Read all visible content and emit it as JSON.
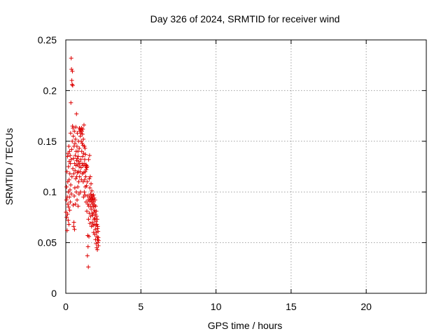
{
  "chart_data": {
    "type": "scatter",
    "title": "Day 326 of 2024, SRMTID for receiver wind",
    "xlabel": "GPS time / hours",
    "ylabel": "SRMTID / TECUs",
    "xlim": [
      0,
      24
    ],
    "ylim": [
      0,
      0.25
    ],
    "x_ticks": [
      0,
      5,
      10,
      15,
      20
    ],
    "x_tick_labels": [
      "0",
      "5",
      "10",
      "15",
      "20"
    ],
    "y_ticks": [
      0,
      0.05,
      0.1,
      0.15,
      0.2,
      0.25
    ],
    "y_tick_labels": [
      "0",
      "0.05",
      "0.1",
      "0.15",
      "0.2",
      "0.25"
    ],
    "grid": true,
    "marker": "plus",
    "marker_color": "#dd0000",
    "series": [
      {
        "points": [
          [
            0.02,
            0.08
          ],
          [
            0.04,
            0.092
          ],
          [
            0.05,
            0.105
          ],
          [
            0.06,
            0.075
          ],
          [
            0.08,
            0.12
          ],
          [
            0.09,
            0.062
          ],
          [
            0.1,
            0.095
          ],
          [
            0.11,
            0.135
          ],
          [
            0.12,
            0.078
          ],
          [
            0.13,
            0.11
          ],
          [
            0.14,
            0.088
          ],
          [
            0.15,
            0.138
          ],
          [
            0.16,
            0.072
          ],
          [
            0.17,
            0.1
          ],
          [
            0.18,
            0.125
          ],
          [
            0.19,
            0.085
          ],
          [
            0.2,
            0.145
          ],
          [
            0.21,
            0.068
          ],
          [
            0.22,
            0.112
          ],
          [
            0.23,
            0.13
          ],
          [
            0.24,
            0.095
          ],
          [
            0.25,
            0.14
          ],
          [
            0.26,
            0.082
          ],
          [
            0.27,
            0.118
          ],
          [
            0.28,
            0.102
          ],
          [
            0.29,
            0.136
          ],
          [
            0.3,
            0.09
          ],
          [
            0.31,
            0.128
          ],
          [
            0.32,
            0.158
          ],
          [
            0.33,
            0.107
          ],
          [
            0.34,
            0.188
          ],
          [
            0.35,
            0.132
          ],
          [
            0.36,
            0.232
          ],
          [
            0.37,
            0.098
          ],
          [
            0.38,
            0.221
          ],
          [
            0.39,
            0.142
          ],
          [
            0.4,
            0.21
          ],
          [
            0.41,
            0.115
          ],
          [
            0.42,
            0.206
          ],
          [
            0.43,
            0.15
          ],
          [
            0.44,
            0.219
          ],
          [
            0.45,
            0.165
          ],
          [
            0.46,
            0.205
          ],
          [
            0.47,
            0.123
          ],
          [
            0.48,
            0.163
          ],
          [
            0.49,
            0.087
          ],
          [
            0.5,
            0.155
          ],
          [
            0.51,
            0.133
          ],
          [
            0.52,
            0.066
          ],
          [
            0.53,
            0.118
          ],
          [
            0.54,
            0.07
          ],
          [
            0.55,
            0.145
          ],
          [
            0.56,
            0.096
          ],
          [
            0.57,
            0.16
          ],
          [
            0.58,
            0.063
          ],
          [
            0.59,
            0.128
          ],
          [
            0.6,
            0.104
          ],
          [
            0.61,
            0.148
          ],
          [
            0.62,
            0.121
          ],
          [
            0.63,
            0.136
          ],
          [
            0.64,
            0.088
          ],
          [
            0.65,
            0.152
          ],
          [
            0.66,
            0.113
          ],
          [
            0.67,
            0.164
          ],
          [
            0.68,
            0.126
          ],
          [
            0.69,
            0.14
          ],
          [
            0.7,
            0.1
          ],
          [
            0.71,
            0.177
          ],
          [
            0.72,
            0.131
          ],
          [
            0.73,
            0.115
          ],
          [
            0.74,
            0.145
          ],
          [
            0.75,
            0.092
          ],
          [
            0.76,
            0.133
          ],
          [
            0.77,
            0.158
          ],
          [
            0.78,
            0.119
          ],
          [
            0.79,
            0.127
          ],
          [
            0.8,
            0.105
          ],
          [
            0.81,
            0.14
          ],
          [
            0.82,
            0.086
          ],
          [
            0.83,
            0.135
          ],
          [
            0.84,
            0.12
          ],
          [
            0.85,
            0.15
          ],
          [
            0.86,
            0.11
          ],
          [
            0.87,
            0.13
          ],
          [
            0.88,
            0.098
          ],
          [
            0.89,
            0.125
          ],
          [
            0.9,
            0.143
          ],
          [
            0.91,
            0.163
          ],
          [
            0.92,
            0.115
          ],
          [
            0.93,
            0.16
          ],
          [
            0.94,
            0.128
          ],
          [
            0.95,
            0.162
          ],
          [
            0.96,
            0.12
          ],
          [
            0.97,
            0.155
          ],
          [
            0.98,
            0.1
          ],
          [
            0.99,
            0.161
          ],
          [
            1.0,
            0.132
          ],
          [
            1.01,
            0.158
          ],
          [
            1.02,
            0.124
          ],
          [
            1.03,
            0.15
          ],
          [
            1.04,
            0.112
          ],
          [
            1.05,
            0.163
          ],
          [
            1.06,
            0.14
          ],
          [
            1.07,
            0.16
          ],
          [
            1.08,
            0.128
          ],
          [
            1.09,
            0.148
          ],
          [
            1.1,
            0.118
          ],
          [
            1.11,
            0.157
          ],
          [
            1.12,
            0.135
          ],
          [
            1.13,
            0.162
          ],
          [
            1.14,
            0.126
          ],
          [
            1.15,
            0.146
          ],
          [
            1.16,
            0.11
          ],
          [
            1.17,
            0.152
          ],
          [
            1.18,
            0.095
          ],
          [
            1.19,
            0.138
          ],
          [
            1.2,
            0.119
          ],
          [
            1.21,
            0.166
          ],
          [
            1.22,
            0.128
          ],
          [
            1.23,
            0.1
          ],
          [
            1.24,
            0.145
          ],
          [
            1.25,
            0.112
          ],
          [
            1.26,
            0.132
          ],
          [
            1.27,
            0.097
          ],
          [
            1.28,
            0.143
          ],
          [
            1.29,
            0.12
          ],
          [
            1.3,
            0.105
          ],
          [
            1.31,
            0.137
          ],
          [
            1.32,
            0.125
          ],
          [
            1.33,
            0.115
          ],
          [
            1.34,
            0.127
          ],
          [
            1.35,
            0.09
          ],
          [
            1.36,
            0.122
          ],
          [
            1.37,
            0.126
          ],
          [
            1.38,
            0.106
          ],
          [
            1.39,
            0.124
          ],
          [
            1.4,
            0.081
          ],
          [
            1.42,
            0.125
          ],
          [
            1.43,
            0.11
          ],
          [
            1.44,
            0.037
          ],
          [
            1.45,
            0.096
          ],
          [
            1.46,
            0.057
          ],
          [
            1.47,
            0.088
          ],
          [
            1.48,
            0.046
          ],
          [
            1.49,
            0.092
          ],
          [
            1.5,
            0.026
          ],
          [
            1.51,
            0.073
          ],
          [
            1.52,
            0.132
          ],
          [
            1.53,
            0.086
          ],
          [
            1.54,
            0.056
          ],
          [
            1.55,
            0.096
          ],
          [
            1.56,
            0.113
          ],
          [
            1.57,
            0.079
          ],
          [
            1.58,
            0.136
          ],
          [
            1.59,
            0.091
          ],
          [
            1.6,
            0.104
          ],
          [
            1.61,
            0.069
          ],
          [
            1.62,
            0.094
          ],
          [
            1.63,
            0.115
          ],
          [
            1.64,
            0.086
          ],
          [
            1.65,
            0.098
          ],
          [
            1.66,
            0.076
          ],
          [
            1.67,
            0.093
          ],
          [
            1.68,
            0.108
          ],
          [
            1.69,
            0.083
          ],
          [
            1.7,
            0.096
          ],
          [
            1.71,
            0.066
          ],
          [
            1.72,
            0.09
          ],
          [
            1.73,
            0.101
          ],
          [
            1.74,
            0.079
          ],
          [
            1.75,
            0.093
          ],
          [
            1.76,
            0.094
          ],
          [
            1.77,
            0.07
          ],
          [
            1.78,
            0.088
          ],
          [
            1.79,
            0.096
          ],
          [
            1.8,
            0.077
          ],
          [
            1.81,
            0.092
          ],
          [
            1.82,
            0.067
          ],
          [
            1.83,
            0.085
          ],
          [
            1.84,
            0.097
          ],
          [
            1.85,
            0.06
          ],
          [
            1.86,
            0.09
          ],
          [
            1.87,
            0.08
          ],
          [
            1.88,
            0.073
          ],
          [
            1.89,
            0.094
          ],
          [
            1.9,
            0.068
          ],
          [
            1.91,
            0.087
          ],
          [
            1.92,
            0.082
          ],
          [
            1.93,
            0.058
          ],
          [
            1.94,
            0.074
          ],
          [
            1.95,
            0.092
          ],
          [
            1.96,
            0.063
          ],
          [
            1.97,
            0.078
          ],
          [
            1.98,
            0.053
          ],
          [
            1.99,
            0.086
          ],
          [
            2.0,
            0.067
          ],
          [
            2.01,
            0.071
          ],
          [
            2.02,
            0.049
          ],
          [
            2.03,
            0.081
          ],
          [
            2.04,
            0.06
          ],
          [
            2.05,
            0.076
          ],
          [
            2.06,
            0.045
          ],
          [
            2.07,
            0.068
          ],
          [
            2.08,
            0.056
          ],
          [
            2.09,
            0.073
          ],
          [
            2.1,
            0.043
          ],
          [
            2.11,
            0.064
          ],
          [
            2.12,
            0.053
          ],
          [
            2.13,
            0.066
          ],
          [
            2.14,
            0.05
          ],
          [
            2.15,
            0.061
          ],
          [
            2.16,
            0.055
          ],
          [
            2.17,
            0.047
          ],
          [
            2.18,
            0.052
          ]
        ]
      }
    ]
  }
}
